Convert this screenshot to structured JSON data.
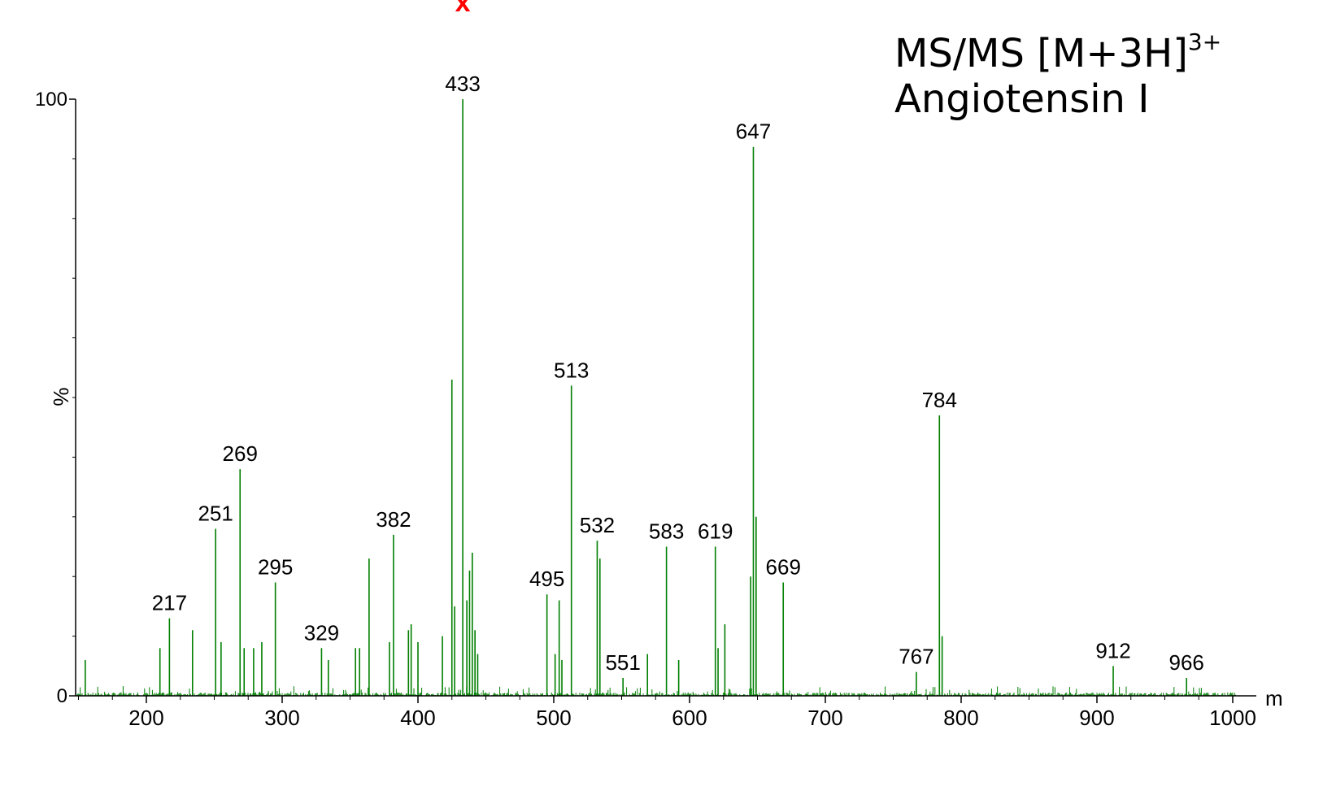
{
  "chart_data": {
    "type": "line",
    "title_line1": "MS/MS [M+3H]",
    "title_sup": "3+",
    "title_line2": "Angiotensin I",
    "ylabel": "%",
    "xlabel": "m",
    "xlim": [
      150,
      1000
    ],
    "ylim": [
      0,
      100
    ],
    "x_ticks": [
      200,
      300,
      400,
      500,
      600,
      700,
      800,
      900,
      1000
    ],
    "y_ticks": [
      0,
      100
    ],
    "color": "#007f00",
    "marker_color": "#ff0000",
    "marker_symbol": "x",
    "marker_x": 433,
    "peaks": [
      {
        "x": 217,
        "y": 13,
        "label": "217"
      },
      {
        "x": 251,
        "y": 28,
        "label": "251"
      },
      {
        "x": 269,
        "y": 38,
        "label": "269"
      },
      {
        "x": 295,
        "y": 19,
        "label": "295"
      },
      {
        "x": 329,
        "y": 8,
        "label": "329"
      },
      {
        "x": 382,
        "y": 27,
        "label": "382"
      },
      {
        "x": 433,
        "y": 100,
        "label": "433"
      },
      {
        "x": 495,
        "y": 17,
        "label": "495"
      },
      {
        "x": 513,
        "y": 52,
        "label": "513"
      },
      {
        "x": 532,
        "y": 26,
        "label": "532"
      },
      {
        "x": 551,
        "y": 3,
        "label": "551"
      },
      {
        "x": 583,
        "y": 25,
        "label": "583"
      },
      {
        "x": 619,
        "y": 25,
        "label": "619"
      },
      {
        "x": 647,
        "y": 92,
        "label": "647"
      },
      {
        "x": 669,
        "y": 19,
        "label": "669"
      },
      {
        "x": 767,
        "y": 4,
        "label": "767"
      },
      {
        "x": 784,
        "y": 47,
        "label": "784"
      },
      {
        "x": 912,
        "y": 5,
        "label": "912"
      },
      {
        "x": 966,
        "y": 3,
        "label": "966"
      }
    ],
    "minor_peaks": [
      {
        "x": 155,
        "y": 6
      },
      {
        "x": 210,
        "y": 8
      },
      {
        "x": 234,
        "y": 11
      },
      {
        "x": 255,
        "y": 9
      },
      {
        "x": 272,
        "y": 8
      },
      {
        "x": 279,
        "y": 8
      },
      {
        "x": 285,
        "y": 9
      },
      {
        "x": 334,
        "y": 6
      },
      {
        "x": 354,
        "y": 8
      },
      {
        "x": 357,
        "y": 8
      },
      {
        "x": 364,
        "y": 23
      },
      {
        "x": 379,
        "y": 9
      },
      {
        "x": 393,
        "y": 11
      },
      {
        "x": 395,
        "y": 12
      },
      {
        "x": 400,
        "y": 9
      },
      {
        "x": 418,
        "y": 10
      },
      {
        "x": 425,
        "y": 53
      },
      {
        "x": 427,
        "y": 15
      },
      {
        "x": 436,
        "y": 16
      },
      {
        "x": 438,
        "y": 21
      },
      {
        "x": 440,
        "y": 24
      },
      {
        "x": 442,
        "y": 11
      },
      {
        "x": 444,
        "y": 7
      },
      {
        "x": 501,
        "y": 7
      },
      {
        "x": 504,
        "y": 16
      },
      {
        "x": 506,
        "y": 6
      },
      {
        "x": 534,
        "y": 23
      },
      {
        "x": 569,
        "y": 7
      },
      {
        "x": 592,
        "y": 6
      },
      {
        "x": 621,
        "y": 8
      },
      {
        "x": 626,
        "y": 12
      },
      {
        "x": 645,
        "y": 20
      },
      {
        "x": 649,
        "y": 30
      },
      {
        "x": 786,
        "y": 10
      }
    ]
  }
}
